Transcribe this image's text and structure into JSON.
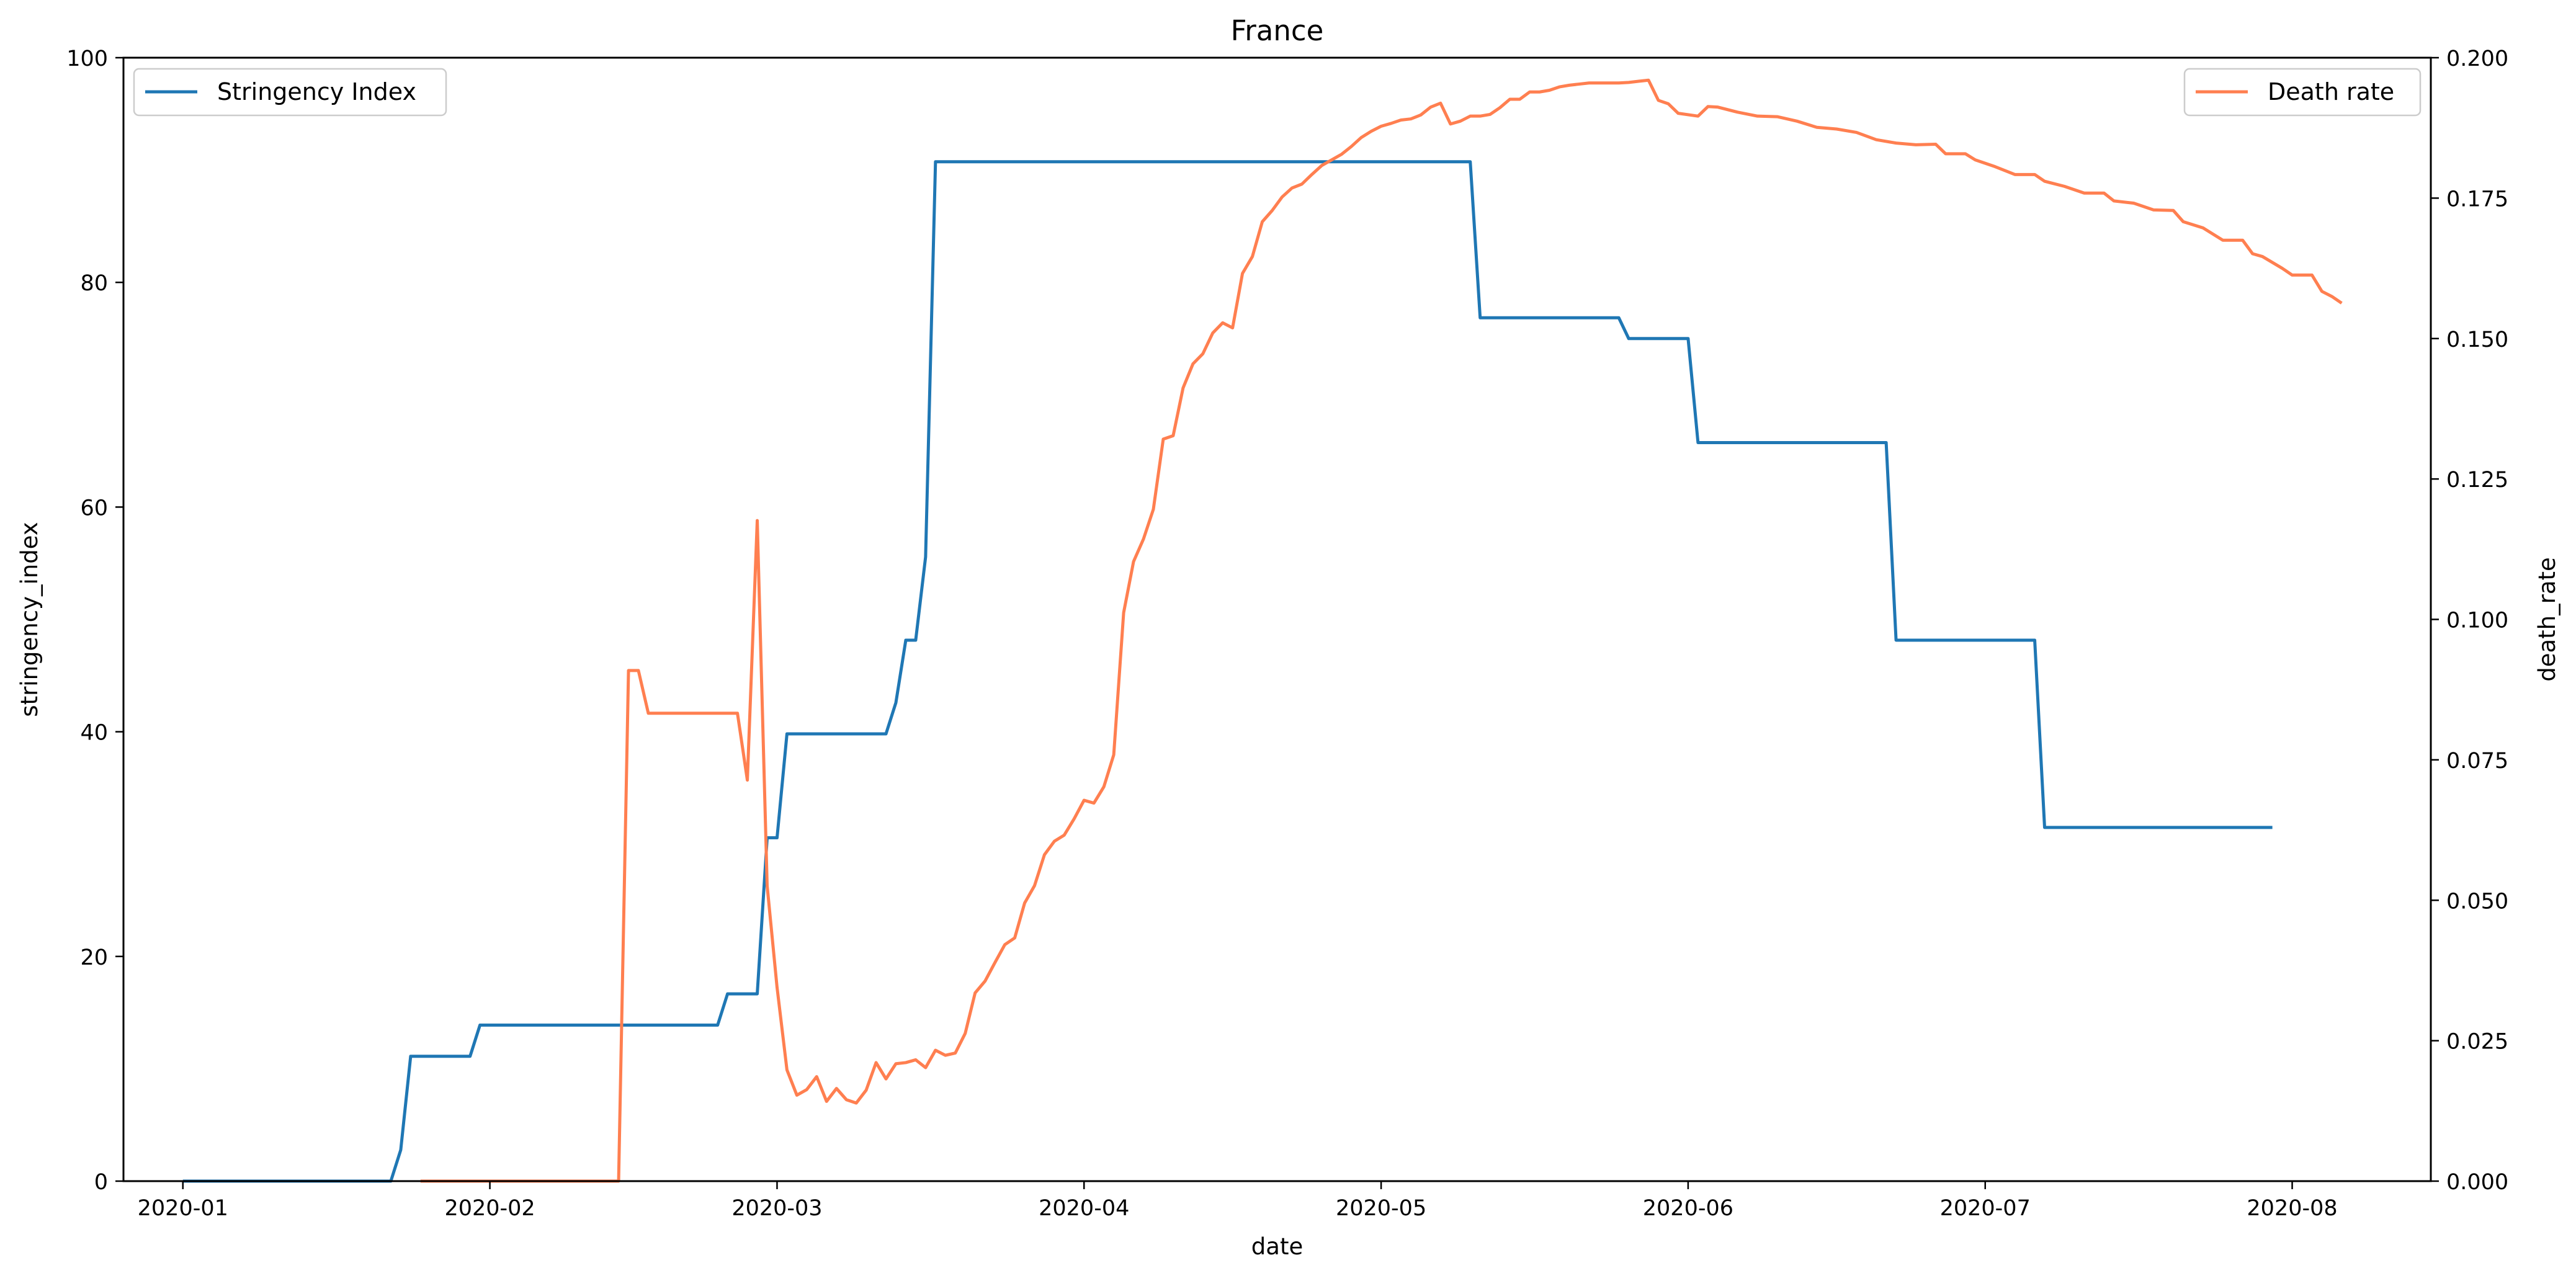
{
  "chart_data": {
    "type": "line",
    "title": "France",
    "xlabel": "date",
    "ylabel_left": "stringency_index",
    "ylabel_right": "death_rate",
    "x_range": [
      "2019-12-26",
      "2020-08-15"
    ],
    "y_left_range": [
      0,
      100
    ],
    "y_right_range": [
      0,
      0.2
    ],
    "x_ticks": [
      "2020-01",
      "2020-02",
      "2020-03",
      "2020-04",
      "2020-05",
      "2020-06",
      "2020-07",
      "2020-08"
    ],
    "x_tick_dates": [
      "2020-01-01",
      "2020-02-01",
      "2020-03-01",
      "2020-04-01",
      "2020-05-01",
      "2020-06-01",
      "2020-07-01",
      "2020-08-01"
    ],
    "y_left_ticks": [
      "0",
      "20",
      "40",
      "60",
      "80",
      "100"
    ],
    "y_left_tick_values": [
      0,
      20,
      40,
      60,
      80,
      100
    ],
    "y_right_ticks": [
      "0.000",
      "0.025",
      "0.050",
      "0.075",
      "0.100",
      "0.125",
      "0.150",
      "0.175",
      "0.200"
    ],
    "y_right_tick_values": [
      0,
      0.025,
      0.05,
      0.075,
      0.1,
      0.125,
      0.15,
      0.175,
      0.2
    ],
    "grid": false,
    "legend_left": {
      "placement": "upper-left",
      "label": "Stringency Index"
    },
    "legend_right": {
      "placement": "upper-right",
      "label": "Death rate"
    },
    "series": [
      {
        "name": "Stringency Index",
        "axis": "left",
        "color": "#1f77b4",
        "points": [
          [
            "2020-01-01",
            0
          ],
          [
            "2020-01-22",
            0
          ],
          [
            "2020-01-23",
            2.78
          ],
          [
            "2020-01-24",
            11.11
          ],
          [
            "2020-01-30",
            11.11
          ],
          [
            "2020-01-31",
            13.89
          ],
          [
            "2020-02-24",
            13.89
          ],
          [
            "2020-02-25",
            16.67
          ],
          [
            "2020-02-28",
            16.67
          ],
          [
            "2020-02-29",
            30.56
          ],
          [
            "2020-03-01",
            30.56
          ],
          [
            "2020-03-02",
            39.81
          ],
          [
            "2020-03-12",
            39.81
          ],
          [
            "2020-03-13",
            42.59
          ],
          [
            "2020-03-14",
            48.15
          ],
          [
            "2020-03-15",
            48.15
          ],
          [
            "2020-03-16",
            55.56
          ],
          [
            "2020-03-17",
            90.74
          ],
          [
            "2020-05-10",
            90.74
          ],
          [
            "2020-05-11",
            76.85
          ],
          [
            "2020-05-25",
            76.85
          ],
          [
            "2020-05-26",
            75
          ],
          [
            "2020-06-01",
            75
          ],
          [
            "2020-06-02",
            65.74
          ],
          [
            "2020-06-21",
            65.74
          ],
          [
            "2020-06-22",
            48.15
          ],
          [
            "2020-07-06",
            48.15
          ],
          [
            "2020-07-07",
            31.48
          ],
          [
            "2020-07-30",
            31.48
          ]
        ]
      },
      {
        "name": "Death rate",
        "axis": "right",
        "color": "#ff7f50",
        "points": [
          [
            "2020-01-25",
            0
          ],
          [
            "2020-02-14",
            0
          ],
          [
            "2020-02-15",
            0.0909
          ],
          [
            "2020-02-16",
            0.0909
          ],
          [
            "2020-02-17",
            0.0833
          ],
          [
            "2020-02-26",
            0.0833
          ],
          [
            "2020-02-27",
            0.0714
          ],
          [
            "2020-02-28",
            0.1176
          ],
          [
            "2020-02-29",
            0.0526
          ],
          [
            "2020-03-01",
            0.0345
          ],
          [
            "2020-03-02",
            0.0198
          ],
          [
            "2020-03-03",
            0.0153
          ],
          [
            "2020-03-04",
            0.0163
          ],
          [
            "2020-03-05",
            0.0186
          ],
          [
            "2020-03-06",
            0.0142
          ],
          [
            "2020-03-07",
            0.0165
          ],
          [
            "2020-03-08",
            0.0145
          ],
          [
            "2020-03-09",
            0.0139
          ],
          [
            "2020-03-10",
            0.0162
          ],
          [
            "2020-03-11",
            0.0211
          ],
          [
            "2020-03-12",
            0.0182
          ],
          [
            "2020-03-13",
            0.0209
          ],
          [
            "2020-03-14",
            0.0211
          ],
          [
            "2020-03-15",
            0.0216
          ],
          [
            "2020-03-16",
            0.0202
          ],
          [
            "2020-03-17",
            0.0233
          ],
          [
            "2020-03-18",
            0.0224
          ],
          [
            "2020-03-19",
            0.0228
          ],
          [
            "2020-03-20",
            0.0263
          ],
          [
            "2020-03-21",
            0.0335
          ],
          [
            "2020-03-22",
            0.0356
          ],
          [
            "2020-03-23",
            0.0389
          ],
          [
            "2020-03-24",
            0.0421
          ],
          [
            "2020-03-25",
            0.0433
          ],
          [
            "2020-03-26",
            0.0495
          ],
          [
            "2020-03-27",
            0.0526
          ],
          [
            "2020-03-28",
            0.0581
          ],
          [
            "2020-03-29",
            0.0605
          ],
          [
            "2020-03-30",
            0.0616
          ],
          [
            "2020-03-31",
            0.0645
          ],
          [
            "2020-04-01",
            0.0678
          ],
          [
            "2020-04-02",
            0.0673
          ],
          [
            "2020-04-03",
            0.0702
          ],
          [
            "2020-04-04",
            0.0759
          ],
          [
            "2020-04-05",
            0.1012
          ],
          [
            "2020-04-06",
            0.1103
          ],
          [
            "2020-04-07",
            0.1143
          ],
          [
            "2020-04-08",
            0.1196
          ],
          [
            "2020-04-09",
            0.1321
          ],
          [
            "2020-04-10",
            0.1327
          ],
          [
            "2020-04-11",
            0.1412
          ],
          [
            "2020-04-12",
            0.1455
          ],
          [
            "2020-04-13",
            0.1473
          ],
          [
            "2020-04-14",
            0.151
          ],
          [
            "2020-04-15",
            0.1528
          ],
          [
            "2020-04-16",
            0.1519
          ],
          [
            "2020-04-17",
            0.1616
          ],
          [
            "2020-04-18",
            0.1646
          ],
          [
            "2020-04-19",
            0.1708
          ],
          [
            "2020-04-20",
            0.1728
          ],
          [
            "2020-04-21",
            0.1752
          ],
          [
            "2020-04-22",
            0.1768
          ],
          [
            "2020-04-23",
            0.1775
          ],
          [
            "2020-04-24",
            0.1792
          ],
          [
            "2020-04-25",
            0.1808
          ],
          [
            "2020-04-26",
            0.1818
          ],
          [
            "2020-04-27",
            0.1828
          ],
          [
            "2020-04-28",
            0.1842
          ],
          [
            "2020-04-29",
            0.1858
          ],
          [
            "2020-04-30",
            0.1869
          ],
          [
            "2020-05-01",
            0.1878
          ],
          [
            "2020-05-02",
            0.1883
          ],
          [
            "2020-05-03",
            0.1889
          ],
          [
            "2020-05-04",
            0.1891
          ],
          [
            "2020-05-05",
            0.1898
          ],
          [
            "2020-05-06",
            0.1912
          ],
          [
            "2020-05-07",
            0.1919
          ],
          [
            "2020-05-08",
            0.1882
          ],
          [
            "2020-05-09",
            0.1887
          ],
          [
            "2020-05-10",
            0.1896
          ],
          [
            "2020-05-11",
            0.1896
          ],
          [
            "2020-05-12",
            0.1899
          ],
          [
            "2020-05-13",
            0.1911
          ],
          [
            "2020-05-14",
            0.1926
          ],
          [
            "2020-05-15",
            0.1926
          ],
          [
            "2020-05-16",
            0.1939
          ],
          [
            "2020-05-17",
            0.1939
          ],
          [
            "2020-05-18",
            0.1942
          ],
          [
            "2020-05-19",
            0.1948
          ],
          [
            "2020-05-20",
            0.1951
          ],
          [
            "2020-05-21",
            0.1953
          ],
          [
            "2020-05-22",
            0.1955
          ],
          [
            "2020-05-23",
            0.1955
          ],
          [
            "2020-05-24",
            0.1955
          ],
          [
            "2020-05-25",
            0.1955
          ],
          [
            "2020-05-26",
            0.1956
          ],
          [
            "2020-05-27",
            0.1958
          ],
          [
            "2020-05-28",
            0.196
          ],
          [
            "2020-05-29",
            0.1924
          ],
          [
            "2020-05-30",
            0.1918
          ],
          [
            "2020-05-31",
            0.1901
          ],
          [
            "2020-06-02",
            0.1896
          ],
          [
            "2020-06-03",
            0.1913
          ],
          [
            "2020-06-04",
            0.1912
          ],
          [
            "2020-06-06",
            0.1903
          ],
          [
            "2020-06-08",
            0.1896
          ],
          [
            "2020-06-10",
            0.1895
          ],
          [
            "2020-06-12",
            0.1887
          ],
          [
            "2020-06-14",
            0.1876
          ],
          [
            "2020-06-16",
            0.1873
          ],
          [
            "2020-06-18",
            0.1867
          ],
          [
            "2020-06-20",
            0.1854
          ],
          [
            "2020-06-22",
            0.1848
          ],
          [
            "2020-06-24",
            0.1845
          ],
          [
            "2020-06-26",
            0.1846
          ],
          [
            "2020-06-27",
            0.1829
          ],
          [
            "2020-06-29",
            0.1829
          ],
          [
            "2020-06-30",
            0.1818
          ],
          [
            "2020-07-02",
            0.1806
          ],
          [
            "2020-07-04",
            0.1792
          ],
          [
            "2020-07-06",
            0.1792
          ],
          [
            "2020-07-07",
            0.178
          ],
          [
            "2020-07-09",
            0.1771
          ],
          [
            "2020-07-11",
            0.1759
          ],
          [
            "2020-07-13",
            0.1759
          ],
          [
            "2020-07-14",
            0.1745
          ],
          [
            "2020-07-16",
            0.1741
          ],
          [
            "2020-07-18",
            0.1729
          ],
          [
            "2020-07-20",
            0.1728
          ],
          [
            "2020-07-21",
            0.1708
          ],
          [
            "2020-07-23",
            0.1697
          ],
          [
            "2020-07-25",
            0.1675
          ],
          [
            "2020-07-27",
            0.1675
          ],
          [
            "2020-07-28",
            0.1651
          ],
          [
            "2020-07-29",
            0.1646
          ],
          [
            "2020-07-31",
            0.1625
          ],
          [
            "2020-08-01",
            0.1613
          ],
          [
            "2020-08-03",
            0.1613
          ],
          [
            "2020-08-04",
            0.1584
          ],
          [
            "2020-08-05",
            0.1575
          ],
          [
            "2020-08-06",
            0.1563
          ]
        ]
      }
    ]
  }
}
